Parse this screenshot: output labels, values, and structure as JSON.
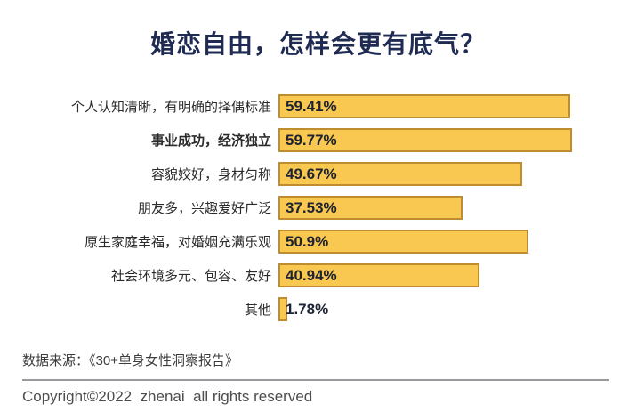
{
  "title": "婚恋自由，怎样会更有底气？",
  "chart_data": {
    "type": "bar",
    "orientation": "horizontal",
    "title": "婚恋自由，怎样会更有底气？",
    "categories": [
      "个人认知清晰，有明确的择偶标准",
      "事业成功，经济独立",
      "容貌姣好，身材匀称",
      "朋友多，兴趣爱好广泛",
      "原生家庭幸福，对婚姻充满乐观",
      "社会环境多元、包容、友好",
      "其他"
    ],
    "values": [
      59.41,
      59.77,
      49.67,
      37.53,
      50.9,
      40.94,
      1.78
    ],
    "value_labels": [
      "59.41%",
      "59.77%",
      "49.67%",
      "37.53%",
      "50.9%",
      "40.94%",
      "1.78%"
    ],
    "emphasis_index": 1,
    "xlim": [
      0,
      65
    ],
    "grid": false,
    "legend": "none",
    "colors": {
      "bar_fill": "#F9C850",
      "bar_border": "#BE8D2F",
      "title": "#1F2B52",
      "value_text": "#1D2335"
    }
  },
  "footer": {
    "source": "数据来源：《30+单身女性洞察报告》",
    "copyright": "Copyright©2022  zhenai  all rights reserved"
  }
}
